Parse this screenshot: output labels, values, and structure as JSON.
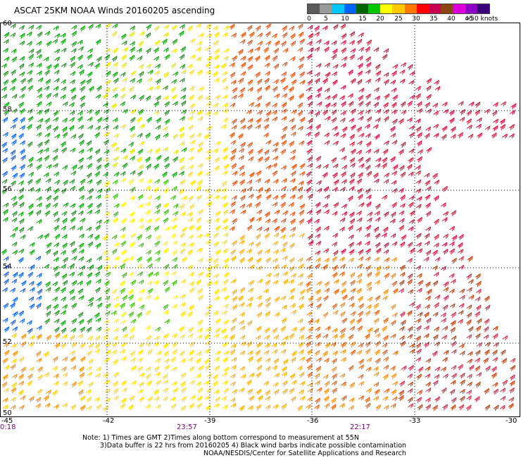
{
  "title": "ASCAT 25KM NOAA Winds 20160205 ascending",
  "color_scale": {
    "labels": [
      "0",
      "5",
      "10",
      "15",
      "20",
      "25",
      "30",
      "35",
      "40",
      "45",
      ">50 knots"
    ],
    "colors": [
      "#5a5a5a",
      "#9a9a9a",
      "#00c8ff",
      "#0064ff",
      "#006400",
      "#00c800",
      "#ffff00",
      "#ffc800",
      "#ff7800",
      "#ff0000",
      "#c80050",
      "#8b4513",
      "#dc00dc",
      "#8c00c8",
      "#3c0078"
    ]
  },
  "map": {
    "lat_labels": [
      "60",
      "58",
      "56",
      "54",
      "52",
      "50"
    ],
    "lon_labels": [
      "-45",
      "-42",
      "-39",
      "-36",
      "-33",
      "-30"
    ],
    "time_labels": [
      "0:18",
      "23:57",
      "22:17"
    ]
  },
  "notes": {
    "line1": "Note: 1) Times are GMT 2)Times along bottom correspond to measurement at 55N",
    "line2": "3)Data buffer is 22 hrs from 20160205 4) Black wind barbs indicate possible contamination",
    "line3": "NOAA/NESDIS/Center for Satellite Applications and Research"
  }
}
